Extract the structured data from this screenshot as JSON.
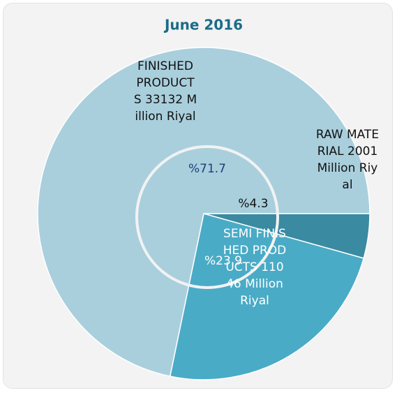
{
  "chart_data": {
    "type": "pie",
    "title": "June 2016",
    "categories": [
      "FINISHED PRODUCTS",
      "RAW MATERIAL",
      "SEMI FINISHED PRODUCTS"
    ],
    "values": [
      33132,
      2001,
      11046
    ],
    "unit": "Million Riyal",
    "percent_labels": [
      "%71.7",
      "%4.3",
      "%23.9"
    ],
    "colors": [
      "#a9cfdd",
      "#3a8aa1",
      "#4aabc6"
    ]
  }
}
